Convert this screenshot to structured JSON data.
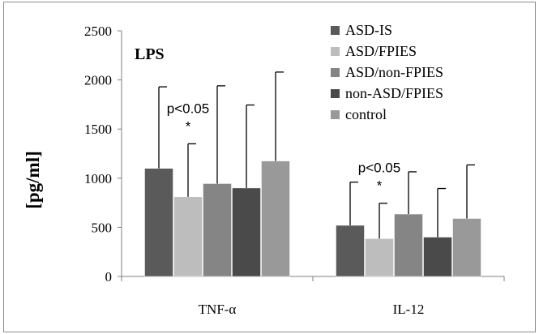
{
  "chart_data": {
    "type": "bar",
    "panel_label": "LPS",
    "ylabel": "[pg/ml]",
    "xlabel": "",
    "ylim": [
      0,
      2500
    ],
    "yticks": [
      "0",
      "500",
      "1000",
      "1500",
      "2000",
      "2500"
    ],
    "categories": [
      "TNF-α",
      "IL-12"
    ],
    "series": [
      {
        "name": "ASD-IS",
        "color": "#5a5a5a",
        "values": [
          1100,
          520
        ],
        "error_upper": [
          1930,
          960
        ]
      },
      {
        "name": "ASD/FPIES",
        "color": "#bdbdbd",
        "values": [
          810,
          385
        ],
        "error_upper": [
          1350,
          745
        ]
      },
      {
        "name": "ASD/non-FPIES",
        "color": "#858585",
        "values": [
          945,
          635
        ],
        "error_upper": [
          1940,
          1065
        ]
      },
      {
        "name": "non-ASD/FPIES",
        "color": "#4a4a4a",
        "values": [
          900,
          400
        ],
        "error_upper": [
          1745,
          895
        ]
      },
      {
        "name": "control",
        "color": "#999999",
        "values": [
          1175,
          590
        ],
        "error_upper": [
          2080,
          1135
        ]
      }
    ],
    "annotations": [
      {
        "category": "TNF-α",
        "series": "ASD/FPIES",
        "text": "p<0.05",
        "marker": "*"
      },
      {
        "category": "IL-12",
        "series": "ASD/FPIES",
        "text": "p<0.05",
        "marker": "*"
      }
    ],
    "legend": "top-right",
    "grid": false
  }
}
